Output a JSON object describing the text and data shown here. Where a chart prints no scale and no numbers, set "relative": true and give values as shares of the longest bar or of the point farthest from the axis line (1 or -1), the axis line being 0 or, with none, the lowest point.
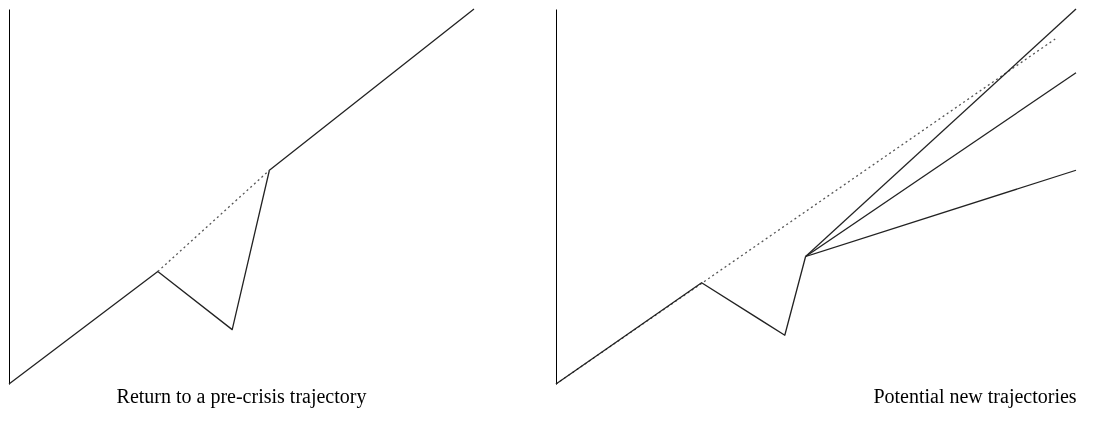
{
  "chart_data": [
    {
      "type": "line",
      "relative": true,
      "xlabel": "Return to a pre-crisis trajectory",
      "categories": [
        null,
        null,
        null,
        null,
        null,
        null,
        null,
        null,
        null,
        null,
        null,
        null,
        null,
        null,
        null,
        null,
        null,
        null,
        null,
        null,
        null,
        null,
        null,
        null,
        null,
        null
      ],
      "tick_labels": false,
      "grid": false,
      "series": [
        {
          "color": "#222222",
          "line_style": "solid",
          "values": [
            0,
            null,
            null,
            null,
            null,
            null,
            null,
            null,
            0.3,
            null,
            null,
            null,
            0.145,
            null,
            0.57,
            null,
            null,
            null,
            null,
            null,
            null,
            null,
            null,
            null,
            null,
            1
          ]
        },
        {
          "color": "#555555",
          "line_style": "dotted",
          "values": [
            null,
            null,
            null,
            null,
            null,
            null,
            null,
            null,
            0.3,
            null,
            null,
            null,
            null,
            null,
            0.57,
            null,
            null,
            null,
            null,
            null,
            null,
            null,
            null,
            null,
            null,
            null
          ]
        }
      ]
    },
    {
      "type": "line",
      "relative": true,
      "xlabel": "Potential new trajectories",
      "categories": [
        null,
        null,
        null,
        null,
        null,
        null,
        null,
        null,
        null,
        null,
        null,
        null,
        null,
        null,
        null,
        null,
        null,
        null,
        null,
        null,
        null,
        null,
        null,
        null,
        null,
        null
      ],
      "tick_labels": false,
      "grid": false,
      "series": [
        {
          "color": "#555555",
          "line_style": "dotted",
          "values": [
            0,
            null,
            null,
            null,
            null,
            null,
            null,
            null,
            null,
            null,
            null,
            null,
            null,
            null,
            null,
            null,
            null,
            null,
            null,
            null,
            null,
            null,
            null,
            null,
            0.92,
            null
          ]
        },
        {
          "color": "#222222",
          "line_style": "solid",
          "values": [
            0,
            null,
            null,
            null,
            null,
            null,
            null,
            0.27,
            null,
            null,
            null,
            0.13,
            0.34,
            null,
            null,
            null,
            null,
            null,
            null,
            null,
            null,
            null,
            null,
            null,
            null,
            null
          ]
        },
        {
          "color": "#222222",
          "line_style": "solid",
          "values": [
            null,
            null,
            null,
            null,
            null,
            null,
            null,
            null,
            null,
            null,
            null,
            null,
            0.34,
            null,
            null,
            null,
            null,
            null,
            null,
            null,
            null,
            null,
            null,
            null,
            null,
            1
          ]
        },
        {
          "color": "#222222",
          "line_style": "solid",
          "values": [
            null,
            null,
            null,
            null,
            null,
            null,
            null,
            null,
            null,
            null,
            null,
            null,
            0.34,
            null,
            null,
            null,
            null,
            null,
            null,
            null,
            null,
            null,
            null,
            null,
            null,
            0.83
          ]
        },
        {
          "color": "#222222",
          "line_style": "solid",
          "values": [
            null,
            null,
            null,
            null,
            null,
            null,
            null,
            null,
            null,
            null,
            null,
            null,
            0.34,
            null,
            null,
            null,
            null,
            null,
            null,
            null,
            null,
            null,
            null,
            null,
            null,
            0.57
          ]
        }
      ]
    }
  ]
}
